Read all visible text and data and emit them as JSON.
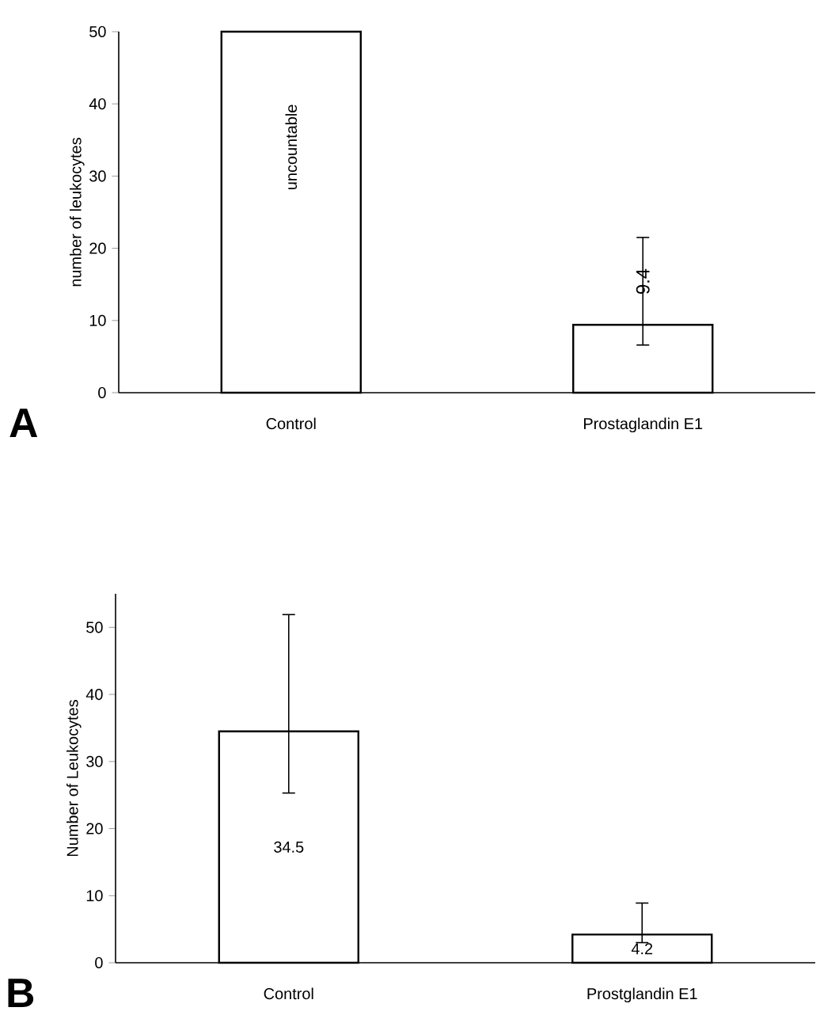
{
  "chart_data": [
    {
      "type": "bar",
      "annotations": [
        "A"
      ],
      "ylabel": "number of leukocytes",
      "categories": [
        "Control",
        "Prostaglandin E1"
      ],
      "series": [
        {
          "color": "#ffffff",
          "values": [
            50,
            9.4
          ],
          "value_labels": [
            "uncountable",
            "9.4"
          ],
          "errors": [
            null,
            [
              6.6,
              21.5
            ]
          ]
        }
      ],
      "ylim": [
        0,
        50
      ],
      "yticks": [
        0,
        10,
        20,
        30,
        40,
        50
      ]
    },
    {
      "type": "bar",
      "annotations": [
        "B"
      ],
      "ylabel": "Number of Leukocytes",
      "categories": [
        "Control",
        "Prostglandin E1"
      ],
      "series": [
        {
          "color": "#ffffff",
          "values": [
            34.5,
            4.2
          ],
          "value_labels": [
            "34.5",
            "4.2"
          ],
          "errors": [
            [
              25.3,
              51.9
            ],
            [
              3,
              8.9
            ]
          ]
        }
      ],
      "ylim": [
        0,
        55
      ],
      "yticks": [
        0,
        10,
        20,
        30,
        40,
        50
      ]
    }
  ]
}
